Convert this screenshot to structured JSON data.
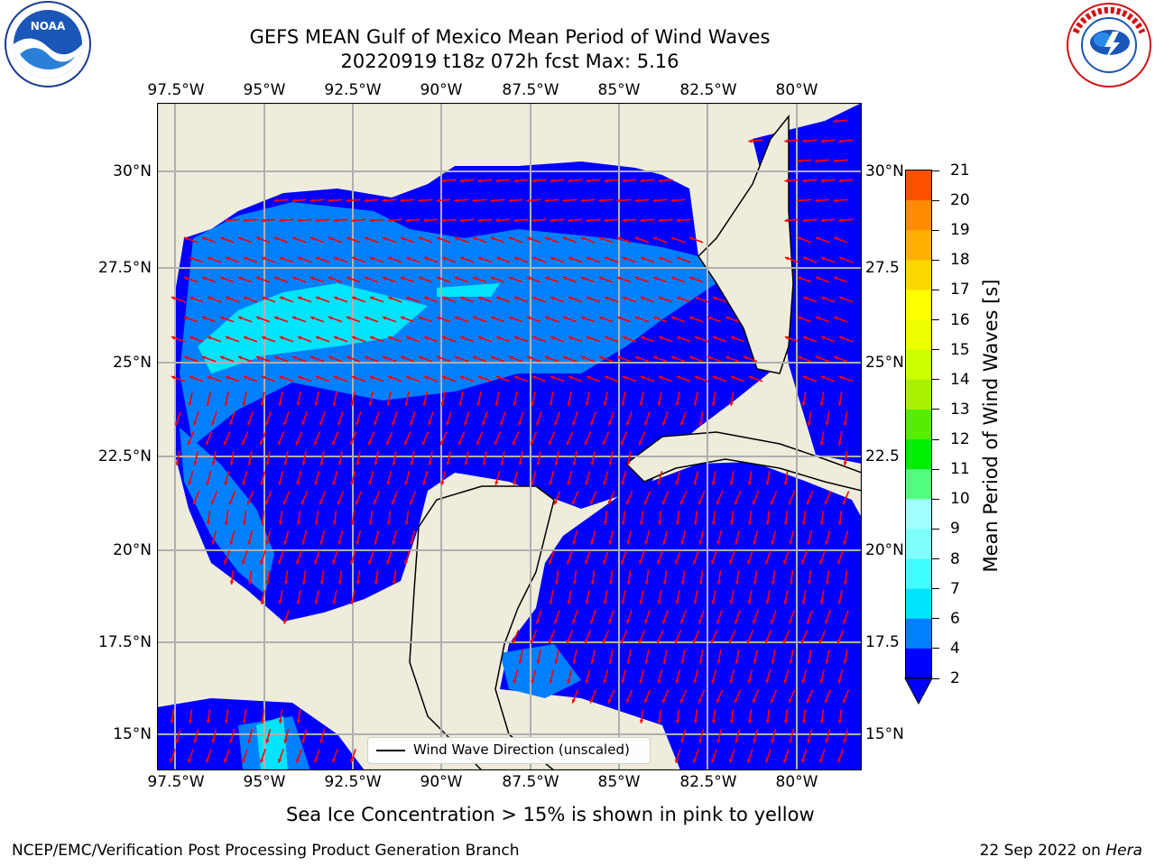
{
  "header": {
    "title_line1": "GEFS MEAN Gulf of Mexico Mean Period of Wind Waves",
    "title_line2": "20220919 t18z 072h fcst   Max: 5.16"
  },
  "logos": {
    "left": "NOAA",
    "right": "NATIONAL WEATHER SERVICE"
  },
  "map": {
    "lon_labels": [
      "97.5°W",
      "95°W",
      "92.5°W",
      "90°W",
      "87.5°W",
      "85°W",
      "82.5°W",
      "80°W"
    ],
    "lat_labels_left": [
      "30°N",
      "27.5°N",
      "25°N",
      "22.5°N",
      "20°N",
      "17.5°N",
      "15°N"
    ],
    "lat_labels_right": [
      "30°N",
      "27.5",
      "25°N",
      "22.5",
      "20°N",
      "17.5",
      "15°N"
    ],
    "legend": "Wind Wave Direction (unscaled)"
  },
  "colorbar": {
    "label": "Mean Period of Wind Waves [s]",
    "ticks": [
      "21",
      "20",
      "19",
      "18",
      "17",
      "16",
      "15",
      "14",
      "13",
      "12",
      "11",
      "10",
      "9",
      "8",
      "7",
      "6",
      "4",
      "2"
    ],
    "colors": [
      "#0000ff",
      "#0080ff",
      "#00e5ff",
      "#40ffff",
      "#80ffff",
      "#a0ffff",
      "#50ff80",
      "#00ee00",
      "#55ee00",
      "#aaf000",
      "#ccff00",
      "#eeff00",
      "#ffff00",
      "#ffd700",
      "#ffb000",
      "#ff8c00",
      "#ff5000",
      "#ff2500",
      "#ff0000"
    ],
    "extend_color": "#0000ff"
  },
  "chart_data": {
    "type": "heatmap",
    "title": "GEFS MEAN Gulf of Mexico Mean Period of Wind Waves",
    "subtitle": "20220919 t18z 072h fcst   Max: 5.16",
    "variable": "Mean Period of Wind Waves [s]",
    "max": 5.16,
    "xlim": [
      -98.2,
      -78.5
    ],
    "ylim": [
      14,
      31.7
    ],
    "levels": [
      2,
      4,
      6,
      7,
      8,
      9,
      10,
      11,
      12,
      13,
      14,
      15,
      16,
      17,
      18,
      19,
      20,
      21
    ]
  },
  "caption": "Sea Ice Concentration > 15% is shown in pink to yellow",
  "footer": {
    "left": "NCEP/EMC/Verification Post Processing Product Generation Branch",
    "right_prefix": "22 Sep 2022 on ",
    "right_host": "Hera"
  }
}
